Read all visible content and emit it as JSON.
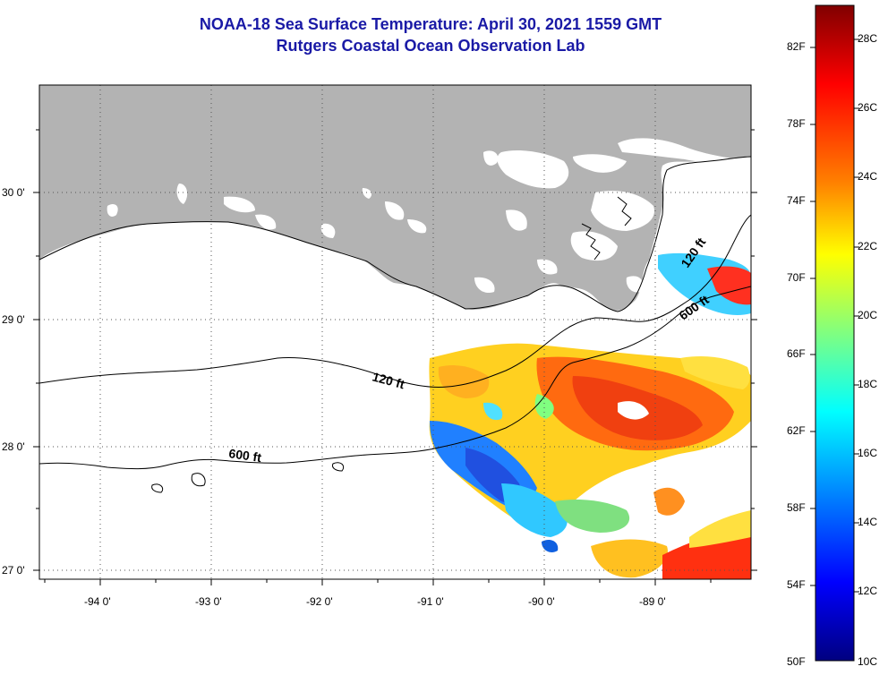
{
  "title": {
    "line1": "NOAA-18 Sea Surface Temperature:  April 30, 2021 1559 GMT",
    "line2": "Rutgers Coastal Ocean Observation Lab"
  },
  "axes": {
    "lat_labels": [
      "30 0'",
      "29 0'",
      "28 0'",
      "27 0'"
    ],
    "lon_labels": [
      "-94 0'",
      "-93 0'",
      "-92 0'",
      "-91 0'",
      "-90 0'",
      "-89 0'"
    ]
  },
  "contours": {
    "label_120_west": "120 ft",
    "label_600_west": "600 ft",
    "label_120_east": "120 ft",
    "label_600_east": "600 ft"
  },
  "colorbar": {
    "fahrenheit": [
      "82F",
      "78F",
      "74F",
      "70F",
      "66F",
      "62F",
      "58F",
      "54F",
      "50F"
    ],
    "celsius": [
      "28C",
      "26C",
      "24C",
      "22C",
      "20C",
      "18C",
      "16C",
      "14C",
      "12C",
      "10C"
    ],
    "colors": [
      "#800000",
      "#ff0000",
      "#ff8000",
      "#ffff00",
      "#80ff80",
      "#00ffff",
      "#0080ff",
      "#0000ff",
      "#000080"
    ]
  },
  "colors": {
    "land": "#b3b3b3",
    "title": "#1a1aa6",
    "ocean": "#ffffff"
  }
}
